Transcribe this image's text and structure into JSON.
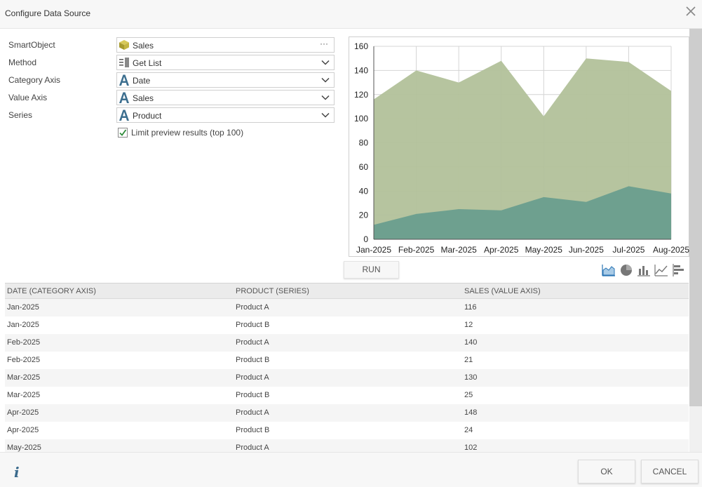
{
  "dialog": {
    "title": "Configure Data Source"
  },
  "form": {
    "smartobject": {
      "label": "SmartObject",
      "value": "Sales"
    },
    "method": {
      "label": "Method",
      "value": "Get List"
    },
    "category_axis": {
      "label": "Category Axis",
      "value": "Date"
    },
    "value_axis": {
      "label": "Value Axis",
      "value": "Sales"
    },
    "series": {
      "label": "Series",
      "value": "Product"
    },
    "limit_preview": {
      "label": "Limit preview results (top 100)",
      "checked": true
    },
    "ellipsis": "···"
  },
  "chart_data": {
    "type": "area",
    "categories": [
      "Jan-2025",
      "Feb-2025",
      "Mar-2025",
      "Apr-2025",
      "May-2025",
      "Jun-2025",
      "Jul-2025",
      "Aug-2025"
    ],
    "series": [
      {
        "values": [
          116,
          140,
          130,
          148,
          102,
          150,
          147,
          123
        ],
        "color": "#b2c19a"
      },
      {
        "values": [
          12,
          21,
          25,
          24,
          35,
          31,
          44,
          38
        ],
        "color": "#6a9e8e"
      }
    ],
    "ylim": [
      0,
      160
    ],
    "yticks": [
      0,
      20,
      40,
      60,
      80,
      100,
      120,
      140,
      160
    ],
    "grid": true
  },
  "run_button": "RUN",
  "chart_type_icons": [
    "area-chart-icon",
    "pie-chart-icon",
    "column-chart-icon",
    "line-chart-icon",
    "bar-chart-icon"
  ],
  "grid": {
    "headers": [
      "DATE (CATEGORY AXIS)",
      "PRODUCT (SERIES)",
      "SALES (VALUE AXIS)"
    ],
    "rows": [
      [
        "Jan-2025",
        "Product A",
        "116"
      ],
      [
        "Jan-2025",
        "Product B",
        "12"
      ],
      [
        "Feb-2025",
        "Product A",
        "140"
      ],
      [
        "Feb-2025",
        "Product B",
        "21"
      ],
      [
        "Mar-2025",
        "Product A",
        "130"
      ],
      [
        "Mar-2025",
        "Product B",
        "25"
      ],
      [
        "Apr-2025",
        "Product A",
        "148"
      ],
      [
        "Apr-2025",
        "Product B",
        "24"
      ],
      [
        "May-2025",
        "Product A",
        "102"
      ]
    ]
  },
  "footer": {
    "info": "i",
    "ok": "OK",
    "cancel": "CANCEL"
  }
}
